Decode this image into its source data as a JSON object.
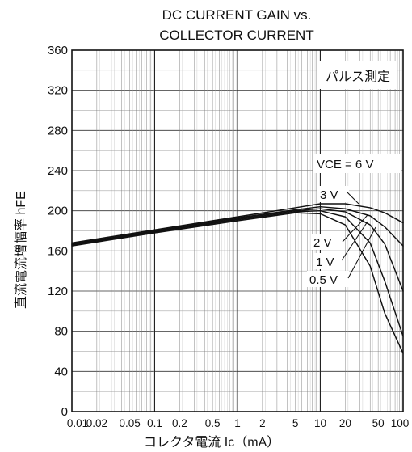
{
  "chart_data": {
    "type": "line",
    "title_line1": "DC CURRENT GAIN vs.",
    "title_line2": "COLLECTOR CURRENT",
    "xlabel": "コレクタ電流 Ic（mA）",
    "ylabel": "直流電流増幅率 hFE",
    "annotation": "パルス測定",
    "legend_prefix": "VCE = 6 V",
    "x_scale": "log",
    "xlim": [
      0.01,
      100
    ],
    "ylim": [
      0,
      360
    ],
    "y_ticks": [
      0,
      40,
      80,
      120,
      160,
      200,
      240,
      280,
      320,
      360
    ],
    "x_ticks": [
      0.01,
      0.02,
      0.05,
      0.1,
      0.2,
      0.5,
      1,
      2,
      5,
      10,
      20,
      50,
      100
    ],
    "x_tick_labels": [
      "0.01",
      "0.02",
      "0.05",
      "0.1",
      "0.2",
      "0.5",
      "1",
      "2",
      "5",
      "10",
      "20",
      "50",
      "100"
    ],
    "grid": true,
    "series": [
      {
        "name": "6 V",
        "x": [
          0.01,
          0.1,
          1,
          5,
          10,
          20,
          40,
          60,
          100
        ],
        "y": [
          168,
          181,
          194,
          203,
          207,
          207,
          203,
          198,
          188
        ]
      },
      {
        "name": "3 V",
        "x": [
          0.01,
          0.1,
          1,
          5,
          10,
          20,
          40,
          60,
          100
        ],
        "y": [
          167,
          180,
          193,
          201,
          204,
          202,
          195,
          184,
          165
        ]
      },
      {
        "name": "2 V",
        "x": [
          0.01,
          0.1,
          1,
          5,
          10,
          20,
          40,
          60,
          100
        ],
        "y": [
          166,
          179,
          192,
          200,
          202,
          199,
          186,
          167,
          120
        ]
      },
      {
        "name": "1 V",
        "x": [
          0.01,
          0.1,
          1,
          5,
          10,
          20,
          40,
          60,
          100
        ],
        "y": [
          166,
          179,
          191,
          199,
          200,
          194,
          168,
          130,
          75
        ]
      },
      {
        "name": "0.5 V",
        "x": [
          0.01,
          0.1,
          1,
          5,
          10,
          20,
          40,
          60,
          100
        ],
        "y": [
          165,
          178,
          190,
          198,
          197,
          186,
          145,
          98,
          58
        ]
      }
    ],
    "series_labels": [
      "3 V",
      "2 V",
      "1 V",
      "0.5 V"
    ]
  }
}
